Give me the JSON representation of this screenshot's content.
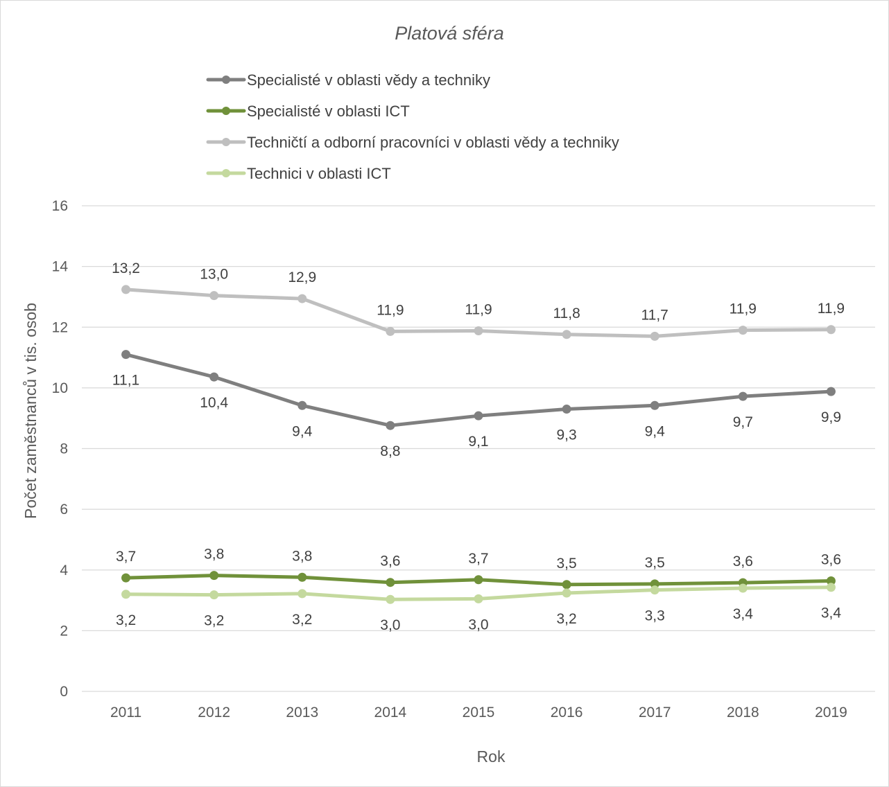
{
  "chart_data": {
    "type": "line",
    "title": "Platová sféra",
    "xlabel": "Rok",
    "ylabel": "Počet zaměstnanců v tis. osob",
    "ylim": [
      0,
      16
    ],
    "yticks": [
      0,
      2,
      4,
      6,
      8,
      10,
      12,
      14,
      16
    ],
    "x": [
      "2011",
      "2012",
      "2013",
      "2014",
      "2015",
      "2016",
      "2017",
      "2018",
      "2019"
    ],
    "grid": true,
    "legend_position": "top",
    "series": [
      {
        "name": "Specialisté v oblasti vědy a techniky",
        "color": "#7f7f7f",
        "values": [
          11.1,
          10.36,
          9.42,
          8.76,
          9.08,
          9.3,
          9.42,
          9.72,
          9.88
        ],
        "labels": [
          "11,1",
          "10,4",
          "9,4",
          "8,8",
          "9,1",
          "9,3",
          "9,4",
          "9,7",
          "9,9"
        ],
        "label_position": "below"
      },
      {
        "name": "Specialisté v oblasti ICT",
        "color": "#70913a",
        "values": [
          3.74,
          3.82,
          3.76,
          3.59,
          3.68,
          3.52,
          3.54,
          3.58,
          3.64
        ],
        "labels": [
          "3,7",
          "3,8",
          "3,8",
          "3,6",
          "3,7",
          "3,5",
          "3,5",
          "3,6",
          "3,6"
        ],
        "label_position": "above"
      },
      {
        "name": "Techničtí a odborní pracovníci v oblasti vědy a techniky",
        "color": "#bfbfbf",
        "values": [
          13.24,
          13.04,
          12.94,
          11.86,
          11.88,
          11.76,
          11.7,
          11.9,
          11.92
        ],
        "labels": [
          "13,2",
          "13,0",
          "12,9",
          "11,9",
          "11,9",
          "11,8",
          "11,7",
          "11,9",
          "11,9"
        ],
        "label_position": "above"
      },
      {
        "name": "Technici v oblasti ICT",
        "color": "#c4d99e",
        "values": [
          3.2,
          3.18,
          3.22,
          3.03,
          3.05,
          3.24,
          3.34,
          3.4,
          3.43
        ],
        "labels": [
          "3,2",
          "3,2",
          "3,2",
          "3,0",
          "3,0",
          "3,2",
          "3,3",
          "3,4",
          "3,4"
        ],
        "label_position": "below"
      }
    ]
  }
}
